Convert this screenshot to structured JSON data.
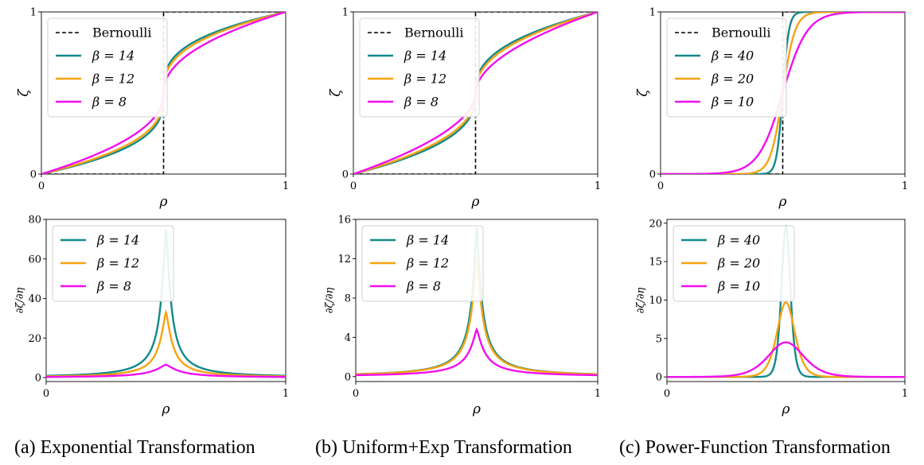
{
  "colors": {
    "teal": "#12898a",
    "orange": "#f5a312",
    "magenta": "#f20ff0",
    "black": "#000000"
  },
  "captions": {
    "a": "(a) Exponential Transformation",
    "b": "(b) Uniform+Exp Transformation",
    "c": "(c) Power-Function Transformation"
  },
  "chart_data": [
    {
      "id": "a-top",
      "type": "line",
      "function": "exp_cdf",
      "xlabel": "ρ",
      "ylabel": "ζ",
      "xlim": [
        0,
        1
      ],
      "ylim": [
        0,
        1
      ],
      "xticks": [
        "0",
        "1"
      ],
      "yticks": [
        "0",
        "1"
      ],
      "legend_position": "top-left",
      "series": [
        {
          "name": "Bernoulli",
          "kind": "step",
          "color": "black",
          "dashed": true,
          "step_at": 0.5
        },
        {
          "name": "β = 14",
          "beta": 14,
          "color": "teal"
        },
        {
          "name": "β = 12",
          "beta": 12,
          "color": "orange"
        },
        {
          "name": "β = 8",
          "beta": 8,
          "color": "magenta"
        }
      ]
    },
    {
      "id": "b-top",
      "type": "line",
      "function": "uexp_cdf",
      "xlabel": "ρ",
      "ylabel": "ζ",
      "xlim": [
        0,
        1
      ],
      "ylim": [
        0,
        1
      ],
      "xticks": [
        "0",
        "1"
      ],
      "yticks": [
        "0",
        "1"
      ],
      "legend_position": "top-left",
      "series": [
        {
          "name": "Bernoulli",
          "kind": "step",
          "color": "black",
          "dashed": true,
          "step_at": 0.5
        },
        {
          "name": "β = 14",
          "beta": 14,
          "color": "teal"
        },
        {
          "name": "β = 12",
          "beta": 12,
          "color": "orange"
        },
        {
          "name": "β = 8",
          "beta": 8,
          "color": "magenta"
        }
      ]
    },
    {
      "id": "c-top",
      "type": "line",
      "function": "pow_cdf",
      "xlabel": "ρ",
      "ylabel": "ζ",
      "xlim": [
        0,
        1
      ],
      "ylim": [
        0,
        1
      ],
      "xticks": [
        "0",
        "1"
      ],
      "yticks": [
        "0",
        "1"
      ],
      "legend_position": "top-left",
      "series": [
        {
          "name": "Bernoulli",
          "kind": "step",
          "color": "black",
          "dashed": true,
          "step_at": 0.5
        },
        {
          "name": "β = 40",
          "beta": 40,
          "color": "teal"
        },
        {
          "name": "β = 20",
          "beta": 20,
          "color": "orange"
        },
        {
          "name": "β = 10",
          "beta": 10,
          "color": "magenta"
        }
      ]
    },
    {
      "id": "a-bottom",
      "type": "line",
      "function": "exp_pdf",
      "xlabel": "ρ",
      "ylabel": "∂ζ/∂η",
      "xlim": [
        0,
        1
      ],
      "ylim": [
        -2,
        80
      ],
      "xticks": [
        "0",
        "1"
      ],
      "yticks": [
        0,
        20,
        40,
        60,
        80
      ],
      "legend_position": "top-left",
      "series": [
        {
          "name": "β = 14",
          "beta": 14,
          "color": "teal",
          "peak": 75
        },
        {
          "name": "β = 12",
          "beta": 12,
          "color": "orange",
          "peak": 33
        },
        {
          "name": "β = 8",
          "beta": 8,
          "color": "magenta",
          "peak": 6.5
        }
      ]
    },
    {
      "id": "b-bottom",
      "type": "line",
      "function": "uexp_pdf",
      "xlabel": "ρ",
      "ylabel": "∂ζ/∂η",
      "xlim": [
        0,
        1
      ],
      "ylim": [
        -0.5,
        16
      ],
      "xticks": [
        "0",
        "1"
      ],
      "yticks": [
        0,
        4,
        8,
        12,
        16
      ],
      "legend_position": "top-left",
      "series": [
        {
          "name": "β = 14",
          "beta": 14,
          "color": "teal",
          "peak": 15.2
        },
        {
          "name": "β = 12",
          "beta": 12,
          "color": "orange",
          "peak": 12.2
        },
        {
          "name": "β = 8",
          "beta": 8,
          "color": "magenta",
          "peak": 4.8
        }
      ]
    },
    {
      "id": "c-bottom",
      "type": "line",
      "function": "pow_pdf",
      "xlabel": "ρ",
      "ylabel": "∂ζ/∂η",
      "xlim": [
        0,
        1
      ],
      "ylim": [
        -0.6,
        20.5
      ],
      "xticks": [
        "0",
        "1"
      ],
      "yticks": [
        0,
        5,
        10,
        15,
        20
      ],
      "legend_position": "top-left",
      "series": [
        {
          "name": "β = 40",
          "beta": 40,
          "color": "teal",
          "peak": 19.6
        },
        {
          "name": "β = 20",
          "beta": 20,
          "color": "orange",
          "peak": 9.7
        },
        {
          "name": "β = 10",
          "beta": 10,
          "color": "magenta",
          "peak": 4.5
        }
      ]
    }
  ]
}
